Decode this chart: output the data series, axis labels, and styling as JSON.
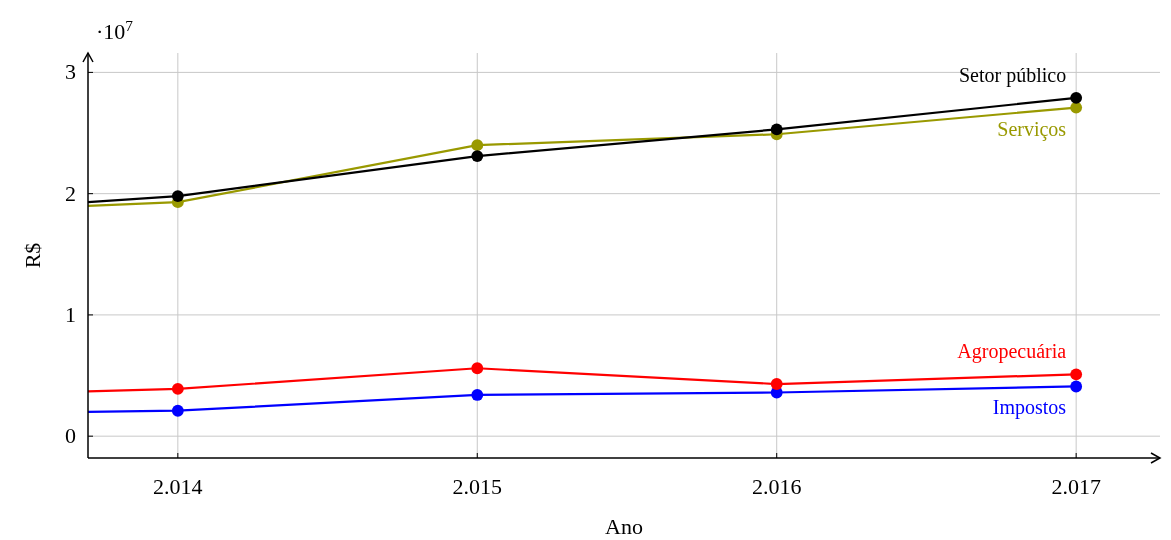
{
  "chart_data": {
    "type": "line",
    "xlabel": "Ano",
    "ylabel": "R$",
    "annotations": [
      "·10$^{7}$"
    ],
    "xlim": [
      2013.7,
      2017.28
    ],
    "ylim": [
      -0.18,
      3.16
    ],
    "xticks": [
      {
        "value": 2014,
        "label": "2.014"
      },
      {
        "value": 2015,
        "label": "2.015"
      },
      {
        "value": 2016,
        "label": "2.016"
      },
      {
        "value": 2017,
        "label": "2.017"
      }
    ],
    "yticks": [
      0,
      1,
      2,
      3
    ],
    "grid": true,
    "marker": "circle",
    "series": [
      {
        "name": "Setor público",
        "color": "#000000",
        "x": [
          2013.7,
          2014,
          2015,
          2016,
          2017
        ],
        "values": [
          1.93,
          1.98,
          2.31,
          2.53,
          2.79
        ]
      },
      {
        "name": "Serviços",
        "color": "#999900",
        "x": [
          2013.7,
          2014,
          2015,
          2016,
          2017
        ],
        "values": [
          1.9,
          1.93,
          2.4,
          2.49,
          2.71
        ]
      },
      {
        "name": "Agropecuária",
        "color": "#ff0000",
        "x": [
          2013.7,
          2014,
          2015,
          2016,
          2017
        ],
        "values": [
          0.37,
          0.39,
          0.56,
          0.43,
          0.51
        ]
      },
      {
        "name": "Impostos",
        "color": "#0000ff",
        "x": [
          2013.7,
          2014,
          2015,
          2016,
          2017
        ],
        "values": [
          0.2,
          0.21,
          0.34,
          0.36,
          0.41
        ]
      }
    ]
  }
}
